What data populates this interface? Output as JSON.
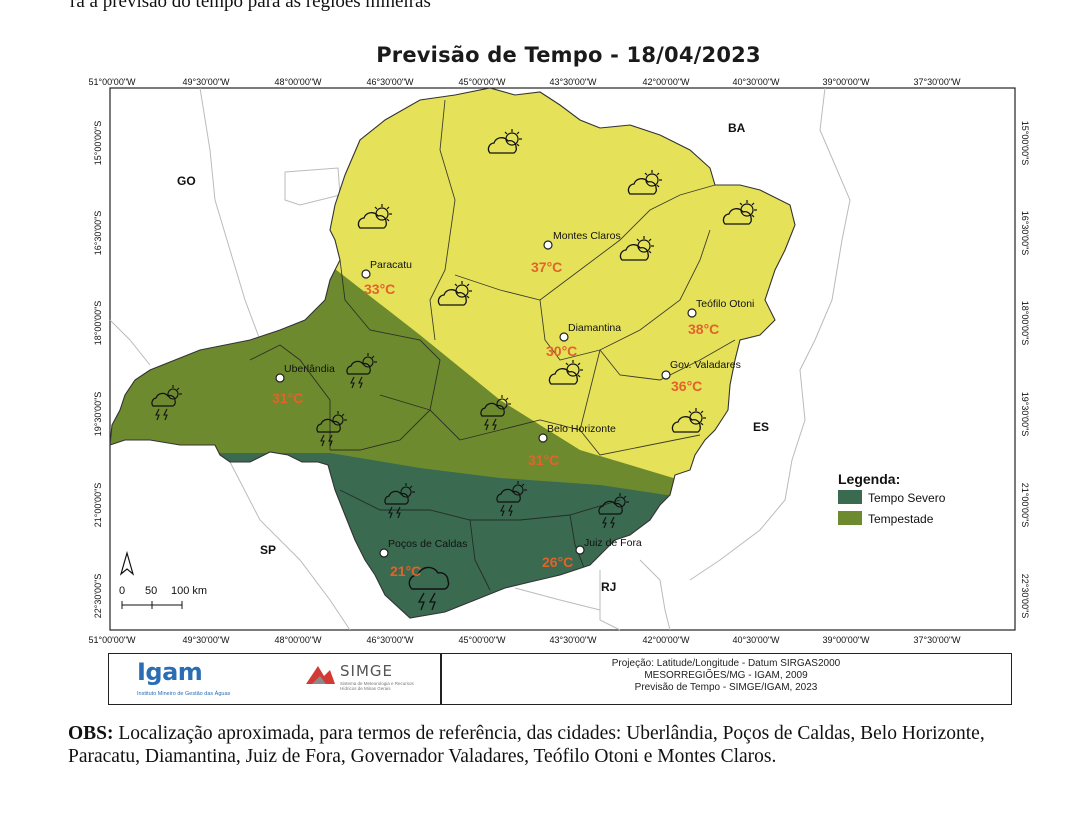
{
  "header_fragment": "ra a previsão do tempo para as regiões mineiras",
  "map": {
    "title": "Previsão de Tempo - 18/04/2023",
    "lon_labels": [
      "51°00'00\"W",
      "49°30'00\"W",
      "48°00'00\"W",
      "46°30'00\"W",
      "45°00'00\"W",
      "43°30'00\"W",
      "42°00'00\"W",
      "40°30'00\"W",
      "39°00'00\"W",
      "37°30'00\"W"
    ],
    "lat_labels": [
      "15°00'00\"S",
      "16°30'00\"S",
      "18°00'00\"S",
      "19°30'00\"S",
      "21°00'00\"S",
      "22°30'00\"S"
    ],
    "states": [
      "GO",
      "BA",
      "ES",
      "SP",
      "RJ"
    ],
    "cities": [
      {
        "name": "Paracatu",
        "temp": "33°C"
      },
      {
        "name": "Montes Claros",
        "temp": "37°C"
      },
      {
        "name": "Teófilo Otoni",
        "temp": "38°C"
      },
      {
        "name": "Diamantina",
        "temp": "30°C"
      },
      {
        "name": "Gov. Valadares",
        "temp": "36°C"
      },
      {
        "name": "Uberlândia",
        "temp": "31°C"
      },
      {
        "name": "Belo Horizonte",
        "temp": "31°C"
      },
      {
        "name": "Poços de Caldas",
        "temp": "21°C"
      },
      {
        "name": "Juiz de Fora",
        "temp": "26°C"
      }
    ],
    "legend": {
      "title": "Legenda:",
      "items": [
        {
          "label": "Tempo Severo",
          "color": "#3a6a50"
        },
        {
          "label": "Tempestade",
          "color": "#6e8a2e"
        }
      ]
    },
    "scale_labels": [
      "0",
      "50",
      "100 km"
    ],
    "north_label": "N",
    "colors": {
      "clear": "#e5e25a",
      "storm": "#6e8a2e",
      "severe": "#3a6a50",
      "temp": "#e3622b"
    }
  },
  "footer": {
    "igam_name": "Igam",
    "igam_subtitle": "Instituto Mineiro de Gestão das Águas",
    "simge_name": "SIMGE",
    "simge_subtitle_1": "Sistema de Meteorologia e Recursos",
    "simge_subtitle_2": "Hídricos de Minas Gerais",
    "credits": [
      "Projeção: Latitude/Longitude - Datum SIRGAS2000",
      "MESORREGIÕES/MG - IGAM, 2009",
      "Previsão de Tempo - SIMGE/IGAM, 2023"
    ]
  },
  "obs": {
    "label": "OBS:",
    "text": " Localização aproximada, para termos de referência, das cidades: Uberlândia, Poços de Caldas, Belo Horizonte, Paracatu, Diamantina, Juiz de Fora, Governador Valadares, Teófilo Otoni e Montes Claros."
  }
}
